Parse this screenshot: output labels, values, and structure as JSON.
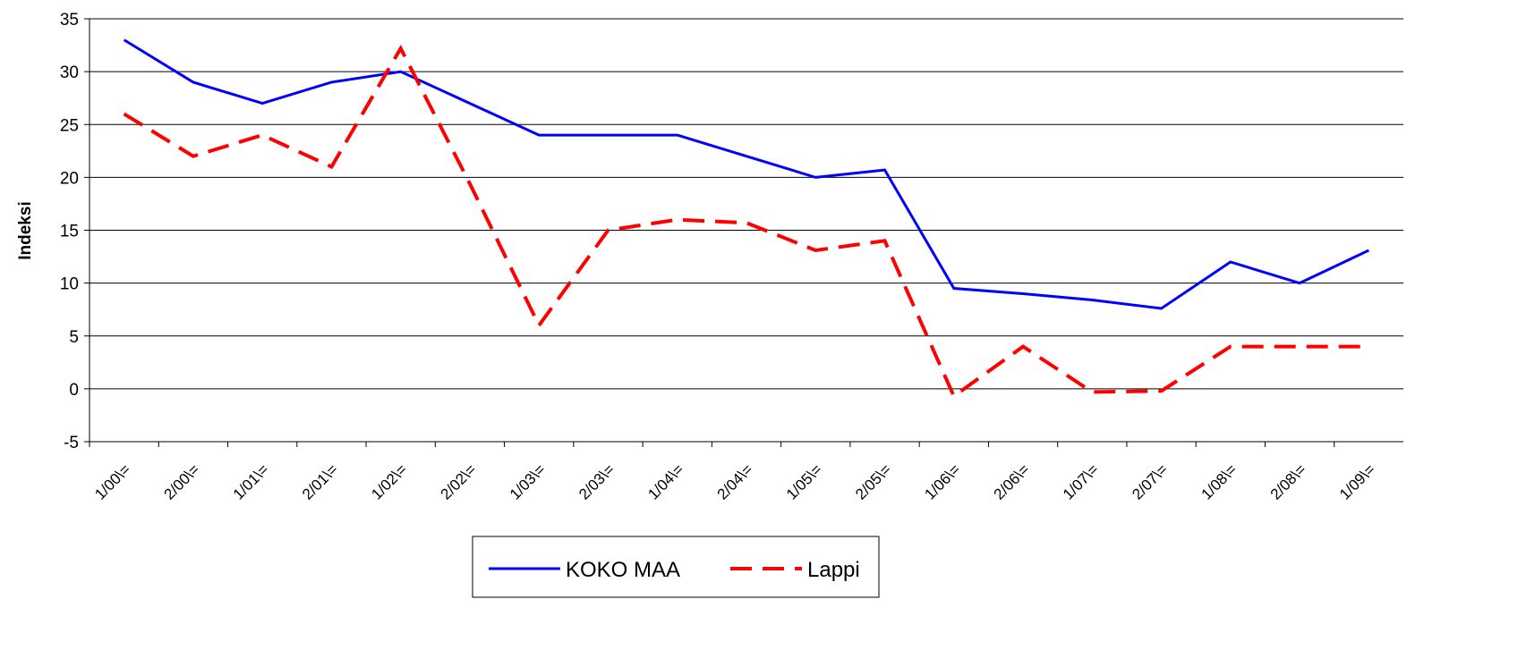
{
  "chart_data": {
    "type": "line",
    "y_label": "Indeksi",
    "categories": [
      "1/00\\=",
      "2/00\\=",
      "1/01\\=",
      "2/01\\=",
      "1/02\\=",
      "2/02\\=",
      "1/03\\=",
      "2/03\\=",
      "1/04\\=",
      "2/04\\=",
      "1/05\\=",
      "2/05\\=",
      "1/06\\=",
      "2/06\\=",
      "1/07\\=",
      "2/07\\=",
      "1/08\\=",
      "2/08\\=",
      "1/09\\="
    ],
    "series": [
      {
        "name": "KOKO MAA",
        "color": "#0000ff",
        "values": [
          33,
          29,
          27,
          29,
          30,
          27,
          24,
          24,
          24,
          22,
          20,
          20.7,
          9.5,
          9,
          8.4,
          7.6,
          12,
          10,
          13.1
        ]
      },
      {
        "name": "Lappi",
        "color": "#ff0000",
        "values": [
          26,
          22,
          24,
          21,
          32.2,
          19.4,
          6,
          15,
          16,
          15.7,
          13.1,
          14,
          -0.7,
          4,
          -0.3,
          -0.2,
          4,
          4,
          4
        ]
      }
    ],
    "ylim": [
      -5,
      35
    ],
    "yticks": [
      -5,
      0,
      5,
      10,
      15,
      20,
      25,
      30,
      35
    ],
    "grid": true,
    "legend": "bottom"
  }
}
